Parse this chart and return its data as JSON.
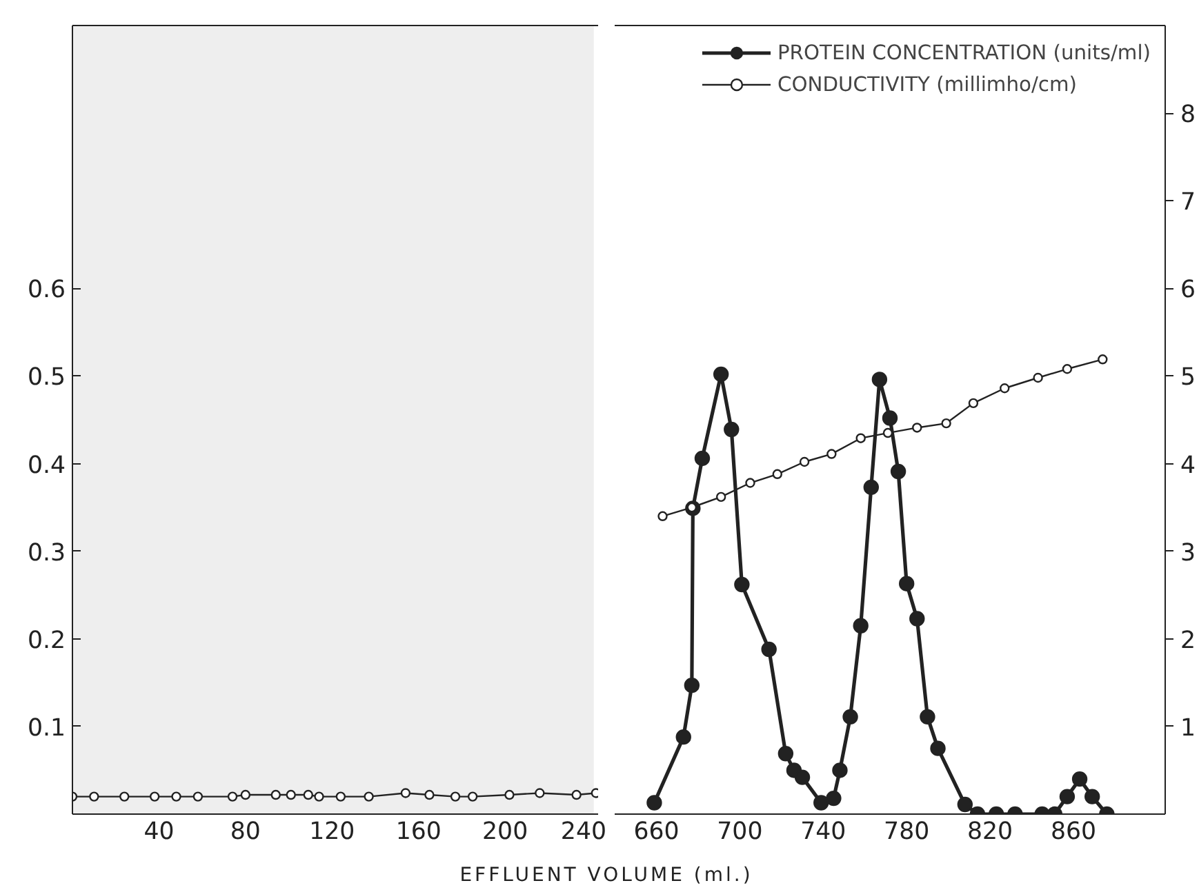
{
  "chart_data": [
    {
      "type": "line",
      "xlim": [
        0,
        243
      ],
      "xticks": [
        40,
        80,
        120,
        160,
        200,
        240
      ],
      "ylim": [
        0,
        0.9
      ],
      "yticks": [
        0.1,
        0.2,
        0.3,
        0.4,
        0.5,
        0.6
      ],
      "y2lim": [
        0,
        9
      ],
      "xlabel": "EFFLUENT VOLUME (ml.)",
      "grid": false,
      "legend": false,
      "bands": [
        {
          "axis": "x",
          "from": 0,
          "to": 241,
          "color": "#222222"
        }
      ],
      "series": [
        {
          "color": "#222222",
          "axis": "y2",
          "marker": "circle_open",
          "x": [
            0,
            10,
            24,
            38,
            48,
            58,
            74,
            80,
            94,
            101,
            109,
            114,
            124,
            137,
            154,
            165,
            177,
            185,
            202,
            216,
            233,
            242
          ],
          "values": [
            0.2,
            0.2,
            0.2,
            0.2,
            0.2,
            0.2,
            0.2,
            0.22,
            0.22,
            0.22,
            0.22,
            0.2,
            0.2,
            0.2,
            0.24,
            0.22,
            0.2,
            0.2,
            0.22,
            0.24,
            0.22,
            0.24
          ]
        }
      ]
    },
    {
      "type": "line",
      "xlim": [
        640,
        904
      ],
      "xticks": [
        660,
        700,
        740,
        780,
        820,
        860
      ],
      "ylim": [
        0,
        0.9
      ],
      "y2lim": [
        0,
        9
      ],
      "y2ticks": [
        1,
        2,
        3,
        4,
        5,
        6,
        7,
        8
      ],
      "grid": false,
      "legend": "top right",
      "series": [
        {
          "name": "PROTEIN CONCENTRATION (units/ml)",
          "color": "#222222",
          "axis": "y",
          "marker": "circle",
          "x": [
            659,
            673,
            677,
            677.5,
            682,
            691,
            696,
            701,
            714,
            722,
            726,
            730,
            739,
            745,
            748,
            753,
            758,
            763,
            767,
            772,
            776,
            780,
            785,
            790,
            795,
            808,
            814,
            823,
            832,
            845,
            851,
            857,
            863,
            869,
            876
          ],
          "values": [
            0.013,
            0.088,
            0.147,
            0.349,
            0.406,
            0.502,
            0.439,
            0.262,
            0.188,
            0.069,
            0.05,
            0.042,
            0.013,
            0.018,
            0.05,
            0.111,
            0.215,
            0.373,
            0.496,
            0.452,
            0.391,
            0.263,
            0.223,
            0.111,
            0.075,
            0.011,
            0,
            0,
            0,
            0,
            0,
            0.02,
            0.04,
            0.02,
            0
          ]
        },
        {
          "name": "CONDUCTIVITY (millimho/cm)",
          "color": "#222222",
          "axis": "y2",
          "marker": "circle_open",
          "x": [
            663,
            677,
            691,
            705,
            718,
            731,
            744,
            758,
            771,
            785,
            799,
            812,
            827,
            843,
            857,
            874
          ],
          "values": [
            3.4,
            3.5,
            3.62,
            3.78,
            3.88,
            4.02,
            4.11,
            4.29,
            4.35,
            4.41,
            4.46,
            4.69,
            4.86,
            4.98,
            5.08,
            5.19
          ]
        }
      ]
    }
  ]
}
